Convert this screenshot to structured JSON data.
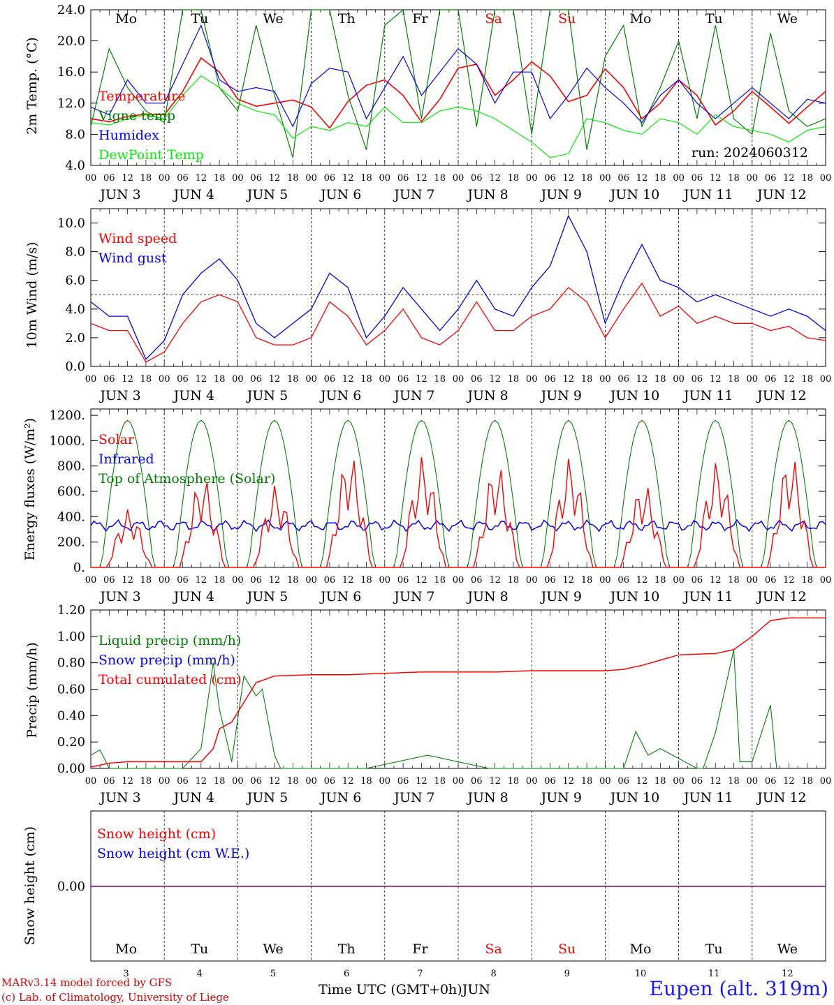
{
  "run_label": "run: 2024060312",
  "station": "Eupen (alt. 319m)",
  "credits": [
    "MARv3.14 model forced by GFS",
    "(c) Lab. of Climatology, University of Liege"
  ],
  "xlabel": "Time UTC (GMT+0h)",
  "month": "JUN",
  "days": [
    "Mo",
    "Tu",
    "We",
    "Th",
    "Fr",
    "Sa",
    "Su",
    "Mo",
    "Tu",
    "We"
  ],
  "weekend_indices": [
    5,
    6
  ],
  "day_numbers": [
    "3",
    "4",
    "5",
    "6",
    "7",
    "8",
    "9",
    "10",
    "11",
    "12"
  ],
  "hour_ticks": [
    "00",
    "06",
    "12",
    "18"
  ],
  "colors": {
    "red": "#ff0000",
    "blue": "#0000ff",
    "green": "#008000",
    "lightgreen": "#00ee00",
    "purple": "#800080",
    "station": "#1a1aff"
  },
  "chart_data": [
    {
      "type": "line",
      "ylabel": "2m Temp. (°C)",
      "ylim": [
        4,
        24
      ],
      "ticks": [
        "4.0",
        "8.0",
        "12.0",
        "16.0",
        "20.0",
        "24.0"
      ],
      "x_unit": "hours since Jun 3 00 UTC",
      "series": [
        {
          "name": "Temperature",
          "color": "red",
          "x": [
            0,
            6,
            12,
            18,
            24,
            30,
            36,
            42,
            48,
            54,
            60,
            66,
            72,
            78,
            84,
            90,
            96,
            102,
            108,
            114,
            120,
            126,
            132,
            138,
            144,
            150,
            156,
            162,
            168,
            174,
            180,
            186,
            192,
            198,
            204,
            210,
            216,
            222,
            228,
            234,
            240
          ],
          "values": [
            10.0,
            9.6,
            10.3,
            10.6,
            10.5,
            13.5,
            17.8,
            16.0,
            12.5,
            11.6,
            12.0,
            12.4,
            11.5,
            8.8,
            12.2,
            14.3,
            15.0,
            13.0,
            9.6,
            12.5,
            16.5,
            17.0,
            13.0,
            15.0,
            17.3,
            15.5,
            12.2,
            13.0,
            16.4,
            14.0,
            10.0,
            12.0,
            15.0,
            13.0,
            9.2,
            11.0,
            13.5,
            11.5,
            9.4,
            11.5,
            13.5
          ]
        },
        {
          "name": "Vigne temp",
          "color": "green",
          "x": [
            0,
            6,
            12,
            18,
            24,
            30,
            36,
            42,
            48,
            54,
            60,
            66,
            72,
            78,
            84,
            90,
            96,
            102,
            108,
            114,
            120,
            126,
            132,
            138,
            144,
            150,
            156,
            162,
            168,
            174,
            180,
            186,
            192,
            198,
            204,
            210,
            216,
            222,
            228,
            234,
            240
          ],
          "values": [
            9.0,
            19.0,
            14.0,
            11.0,
            9.5,
            24.0,
            24.0,
            14.0,
            11.0,
            22.0,
            13.0,
            5.0,
            24.0,
            24.0,
            13.0,
            6.0,
            22.0,
            24.0,
            10.0,
            24.0,
            24.0,
            9.0,
            24.0,
            24.0,
            8.0,
            24.0,
            24.0,
            6.0,
            18.0,
            22.0,
            9.0,
            14.0,
            20.0,
            10.0,
            22.0,
            10.0,
            8.0,
            21.0,
            11.0,
            9.0,
            10.0
          ]
        },
        {
          "name": "Humidex",
          "color": "blue",
          "x": [
            0,
            6,
            12,
            18,
            24,
            30,
            36,
            42,
            48,
            54,
            60,
            66,
            72,
            78,
            84,
            90,
            96,
            102,
            108,
            114,
            120,
            126,
            132,
            138,
            144,
            150,
            156,
            162,
            168,
            174,
            180,
            186,
            192,
            198,
            204,
            210,
            216,
            222,
            228,
            234,
            240
          ],
          "values": [
            11.5,
            10.5,
            15.0,
            12.0,
            12.0,
            17.0,
            22.0,
            15.0,
            13.5,
            14.0,
            13.5,
            9.0,
            14.5,
            16.5,
            16.0,
            10.0,
            14.0,
            18.0,
            13.0,
            16.0,
            19.0,
            17.0,
            12.0,
            16.0,
            16.0,
            10.0,
            13.0,
            16.5,
            14.0,
            12.0,
            9.5,
            13.0,
            15.0,
            12.0,
            10.0,
            12.0,
            14.0,
            12.0,
            10.0,
            12.5,
            12.0
          ]
        },
        {
          "name": "DewPoint Temp",
          "color": "lightgreen",
          "x": [
            0,
            6,
            12,
            18,
            24,
            30,
            36,
            42,
            48,
            54,
            60,
            66,
            72,
            78,
            84,
            90,
            96,
            102,
            108,
            114,
            120,
            126,
            132,
            138,
            144,
            150,
            156,
            162,
            168,
            174,
            180,
            186,
            192,
            198,
            204,
            210,
            216,
            222,
            228,
            234,
            240
          ],
          "values": [
            9.5,
            9.2,
            10.0,
            10.5,
            10.0,
            13.0,
            15.5,
            14.0,
            12.0,
            11.0,
            10.5,
            7.5,
            9.0,
            8.5,
            9.5,
            9.0,
            11.5,
            9.5,
            9.5,
            11.0,
            11.5,
            11.0,
            10.0,
            8.5,
            7.0,
            5.0,
            5.5,
            10.0,
            9.5,
            8.5,
            8.0,
            10.0,
            9.5,
            8.0,
            10.5,
            9.0,
            8.5,
            8.0,
            7.0,
            8.5,
            9.0
          ]
        }
      ]
    },
    {
      "type": "line",
      "ylabel": "10m Wind (m/s)",
      "ylim": [
        0,
        11
      ],
      "ticks": [
        "0.0",
        "2.0",
        "4.0",
        "6.0",
        "8.0",
        "10.0"
      ],
      "reference_line": 5.0,
      "series": [
        {
          "name": "Wind speed",
          "color": "red",
          "x": [
            0,
            6,
            12,
            18,
            24,
            30,
            36,
            42,
            48,
            54,
            60,
            66,
            72,
            78,
            84,
            90,
            96,
            102,
            108,
            114,
            120,
            126,
            132,
            138,
            144,
            150,
            156,
            162,
            168,
            174,
            180,
            186,
            192,
            198,
            204,
            210,
            216,
            222,
            228,
            234,
            240
          ],
          "values": [
            3.0,
            2.5,
            2.5,
            0.3,
            1.0,
            3.0,
            4.5,
            5.0,
            4.5,
            2.0,
            1.5,
            1.5,
            2.0,
            4.5,
            3.5,
            1.5,
            2.5,
            4.0,
            2.0,
            1.5,
            2.5,
            4.5,
            2.5,
            2.5,
            3.5,
            4.0,
            5.5,
            4.5,
            2.0,
            4.0,
            5.8,
            3.5,
            4.2,
            3.0,
            3.5,
            3.0,
            3.0,
            2.5,
            2.8,
            2.0,
            1.8
          ]
        },
        {
          "name": "Wind gust",
          "color": "blue",
          "x": [
            0,
            6,
            12,
            18,
            24,
            30,
            36,
            42,
            48,
            54,
            60,
            66,
            72,
            78,
            84,
            90,
            96,
            102,
            108,
            114,
            120,
            126,
            132,
            138,
            144,
            150,
            156,
            162,
            168,
            174,
            180,
            186,
            192,
            198,
            204,
            210,
            216,
            222,
            228,
            234,
            240
          ],
          "values": [
            4.5,
            3.5,
            3.5,
            0.5,
            1.8,
            5.0,
            6.5,
            7.5,
            6.0,
            3.0,
            2.0,
            3.0,
            4.0,
            6.5,
            5.5,
            2.0,
            3.5,
            5.5,
            4.0,
            2.5,
            4.0,
            6.0,
            4.0,
            3.5,
            5.5,
            7.0,
            10.5,
            8.0,
            3.0,
            6.0,
            8.5,
            6.0,
            5.5,
            4.5,
            5.0,
            4.5,
            4.0,
            3.5,
            4.0,
            3.5,
            2.5
          ]
        }
      ]
    },
    {
      "type": "line",
      "ylabel": "Energy fluxes (W/m²)",
      "ylim": [
        0,
        1250
      ],
      "ticks": [
        "0.",
        "200.",
        "400.",
        "600.",
        "800.",
        "1000.",
        "1200."
      ],
      "series": [
        {
          "name": "Solar",
          "color": "red",
          "peaks": [
            460,
            720,
            650,
            900,
            880,
            820,
            870,
            670,
            840,
            890
          ]
        },
        {
          "name": "Infrared",
          "color": "blue",
          "mean": 330
        },
        {
          "name": "Top of Atmosphere (Solar)",
          "color": "green",
          "peak": 1160
        }
      ]
    },
    {
      "type": "line",
      "ylabel": "Precip (mm/h)",
      "ylim": [
        0,
        1.2
      ],
      "ticks": [
        "0.00",
        "0.20",
        "0.40",
        "0.60",
        "0.80",
        "1.00",
        "1.20"
      ],
      "series": [
        {
          "name": "Liquid precip (mm/h)",
          "color": "green",
          "x": [
            0,
            3,
            6,
            30,
            34,
            36,
            40,
            42,
            46,
            50,
            54,
            56,
            60,
            62,
            66,
            90,
            110,
            130,
            174,
            178,
            182,
            186,
            198,
            200,
            204,
            210,
            212,
            216,
            222,
            224
          ],
          "values": [
            0.1,
            0.14,
            0.0,
            0.0,
            0.1,
            0.15,
            0.8,
            0.45,
            0.05,
            0.7,
            0.55,
            0.6,
            0.1,
            0.0,
            0.0,
            0.0,
            0.1,
            0.0,
            0.0,
            0.28,
            0.1,
            0.15,
            0.0,
            0.0,
            0.27,
            0.9,
            0.05,
            0.05,
            0.48,
            0.0
          ]
        },
        {
          "name": "Snow precip (mm/h)",
          "color": "blue"
        },
        {
          "name": "Total cumulated (cm)",
          "color": "red",
          "x": [
            0,
            6,
            12,
            24,
            36,
            40,
            42,
            46,
            50,
            54,
            60,
            72,
            84,
            96,
            108,
            120,
            132,
            144,
            156,
            168,
            174,
            180,
            186,
            192,
            204,
            210,
            216,
            222,
            228,
            240
          ],
          "values": [
            0.01,
            0.04,
            0.05,
            0.05,
            0.05,
            0.15,
            0.3,
            0.35,
            0.5,
            0.65,
            0.7,
            0.71,
            0.71,
            0.72,
            0.73,
            0.73,
            0.73,
            0.74,
            0.74,
            0.74,
            0.75,
            0.78,
            0.82,
            0.86,
            0.87,
            0.9,
            1.0,
            1.12,
            1.14,
            1.14
          ]
        }
      ]
    },
    {
      "type": "line",
      "ylabel": "Snow height (cm)",
      "ticks": [
        "0.00"
      ],
      "series": [
        {
          "name": "Snow height (cm)",
          "color": "red",
          "values": [
            0,
            0
          ]
        },
        {
          "name": "Snow height (cm W.E.)",
          "color": "blue",
          "values": [
            0,
            0
          ]
        }
      ]
    }
  ]
}
